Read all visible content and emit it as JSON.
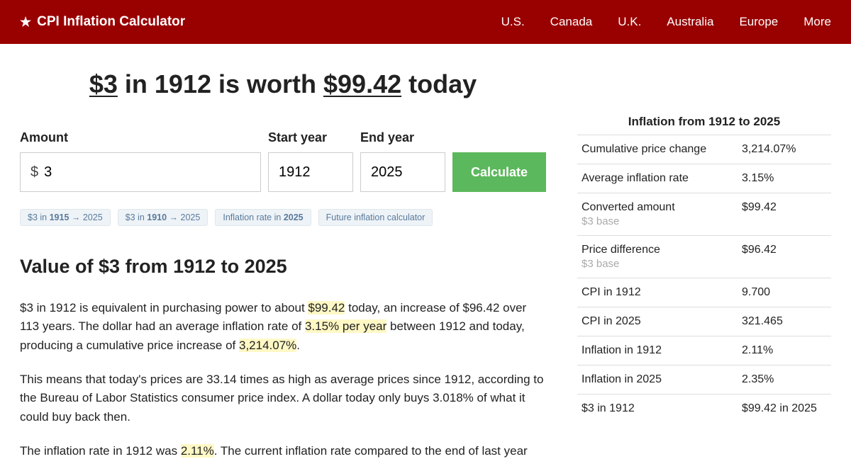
{
  "brand": "CPI Inflation Calculator",
  "nav": [
    "U.S.",
    "Canada",
    "U.K.",
    "Australia",
    "Europe",
    "More"
  ],
  "headline": {
    "amt": "$3",
    "mid": " in 1912 is worth ",
    "val": "$99.42",
    "end": " today"
  },
  "form": {
    "amount_label": "Amount",
    "amount_prefix": "$",
    "amount_value": "3",
    "start_label": "Start year",
    "start_value": "1912",
    "end_label": "End year",
    "end_value": "2025",
    "submit": "Calculate"
  },
  "chips": [
    {
      "pre": "$3 in ",
      "b": "1915",
      "post": " → 2025"
    },
    {
      "pre": "$3 in ",
      "b": "1910",
      "post": " → 2025"
    },
    {
      "pre": "Inflation rate in ",
      "b": "2025",
      "post": ""
    },
    {
      "pre": "Future inflation calculator",
      "b": "",
      "post": ""
    }
  ],
  "h2": "Value of $3 from 1912 to 2025",
  "para1": {
    "a": "$3 in 1912 is equivalent in purchasing power to about ",
    "h1": "$99.42",
    "b": " today, an increase of $96.42 over 113 years. The dollar had an average inflation rate of ",
    "h2": "3.15% per year",
    "c": " between 1912 and today, producing a cumulative price increase of ",
    "h3": "3,214.07%",
    "d": "."
  },
  "para2": "This means that today's prices are 33.14 times as high as average prices since 1912, according to the Bureau of Labor Statistics consumer price index. A dollar today only buys 3.018% of what it could buy back then.",
  "para3": {
    "a": "The inflation rate in 1912 was ",
    "h1": "2.11%",
    "b": ". The current inflation rate compared to the end of last year"
  },
  "side_title": "Inflation from 1912 to 2025",
  "stats": [
    {
      "label": "Cumulative price change",
      "sub": "",
      "val": "3,214.07%"
    },
    {
      "label": "Average inflation rate",
      "sub": "",
      "val": "3.15%"
    },
    {
      "label": "Converted amount",
      "sub": "$3 base",
      "val": "$99.42"
    },
    {
      "label": "Price difference",
      "sub": "$3 base",
      "val": "$96.42"
    },
    {
      "label": "CPI in 1912",
      "sub": "",
      "val": "9.700"
    },
    {
      "label": "CPI in 2025",
      "sub": "",
      "val": "321.465"
    },
    {
      "label": "Inflation in 1912",
      "sub": "",
      "val": "2.11%"
    },
    {
      "label": "Inflation in 2025",
      "sub": "",
      "val": "2.35%"
    },
    {
      "label": "$3 in 1912",
      "sub": "",
      "val": "$99.42 in 2025"
    }
  ]
}
